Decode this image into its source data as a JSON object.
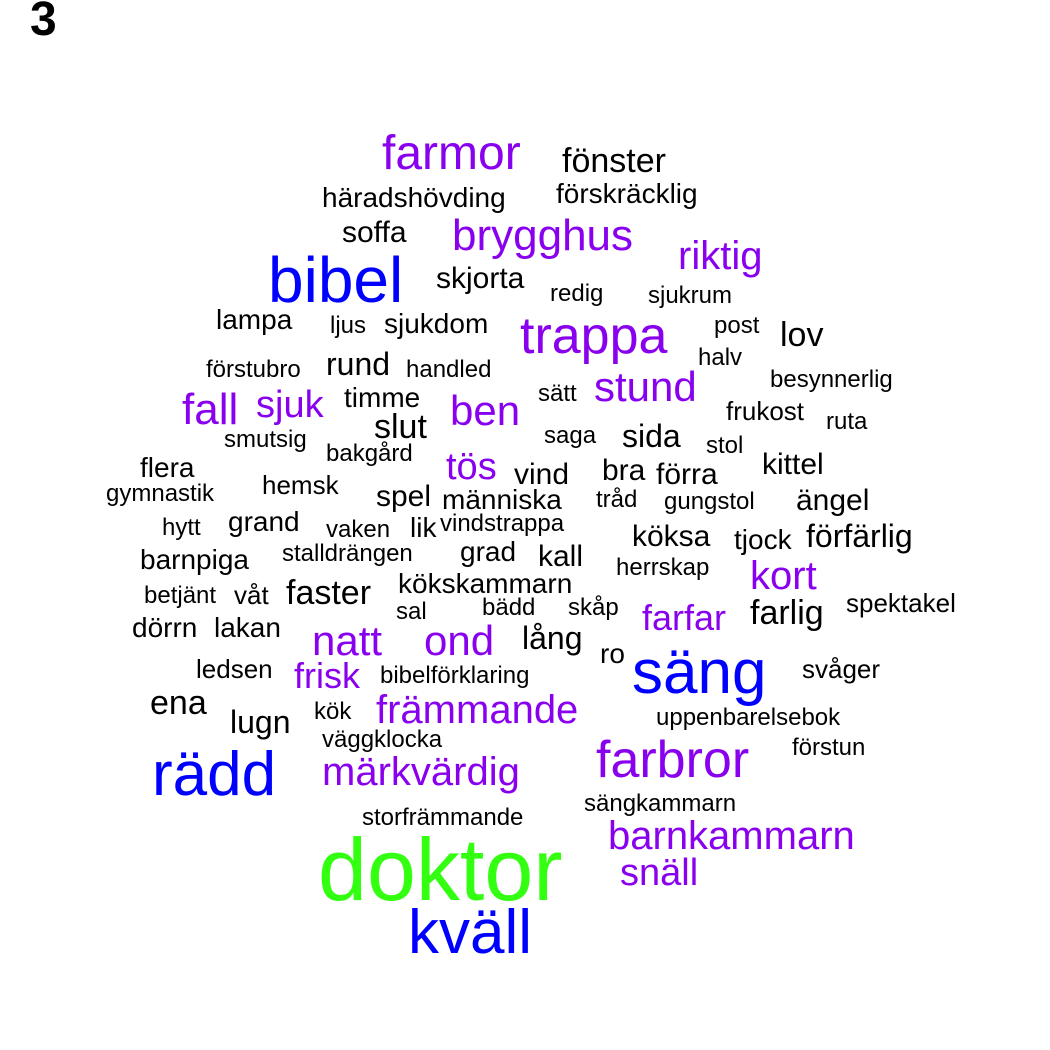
{
  "panel_label": "3",
  "colors": {
    "top": "#33ff11",
    "high": "#0000ff",
    "mid": "#8800ee",
    "low": "#000000"
  },
  "words": [
    {
      "text": "doktor",
      "tier": "top"
    },
    {
      "text": "kväll",
      "tier": "high"
    },
    {
      "text": "rädd",
      "tier": "high"
    },
    {
      "text": "säng",
      "tier": "high"
    },
    {
      "text": "bibel",
      "tier": "high"
    },
    {
      "text": "farbror",
      "tier": "mid"
    },
    {
      "text": "trappa",
      "tier": "mid"
    },
    {
      "text": "farmor",
      "tier": "mid"
    },
    {
      "text": "brygghus",
      "tier": "mid"
    },
    {
      "text": "barnkammarn",
      "tier": "mid"
    },
    {
      "text": "märkvärdig",
      "tier": "mid"
    },
    {
      "text": "främmande",
      "tier": "mid"
    },
    {
      "text": "natt",
      "tier": "mid"
    },
    {
      "text": "ond",
      "tier": "mid"
    },
    {
      "text": "stund",
      "tier": "mid"
    },
    {
      "text": "ben",
      "tier": "mid"
    },
    {
      "text": "fall",
      "tier": "mid"
    },
    {
      "text": "sjuk",
      "tier": "mid"
    },
    {
      "text": "tös",
      "tier": "mid"
    },
    {
      "text": "riktig",
      "tier": "mid"
    },
    {
      "text": "kort",
      "tier": "mid"
    },
    {
      "text": "snäll",
      "tier": "mid"
    },
    {
      "text": "frisk",
      "tier": "mid"
    },
    {
      "text": "farfar",
      "tier": "mid"
    },
    {
      "text": "fönster",
      "tier": "low"
    },
    {
      "text": "förskräcklig",
      "tier": "low"
    },
    {
      "text": "häradshövding",
      "tier": "low"
    },
    {
      "text": "soffa",
      "tier": "low"
    },
    {
      "text": "skjorta",
      "tier": "low"
    },
    {
      "text": "redig",
      "tier": "low"
    },
    {
      "text": "sjukrum",
      "tier": "low"
    },
    {
      "text": "lampa",
      "tier": "low"
    },
    {
      "text": "ljus",
      "tier": "low"
    },
    {
      "text": "sjukdom",
      "tier": "low"
    },
    {
      "text": "post",
      "tier": "low"
    },
    {
      "text": "lov",
      "tier": "low"
    },
    {
      "text": "halv",
      "tier": "low"
    },
    {
      "text": "förstubro",
      "tier": "low"
    },
    {
      "text": "rund",
      "tier": "low"
    },
    {
      "text": "handled",
      "tier": "low"
    },
    {
      "text": "besynnerlig",
      "tier": "low"
    },
    {
      "text": "timme",
      "tier": "low"
    },
    {
      "text": "sätt",
      "tier": "low"
    },
    {
      "text": "frukost",
      "tier": "low"
    },
    {
      "text": "ruta",
      "tier": "low"
    },
    {
      "text": "slut",
      "tier": "low"
    },
    {
      "text": "smutsig",
      "tier": "low"
    },
    {
      "text": "saga",
      "tier": "low"
    },
    {
      "text": "sida",
      "tier": "low"
    },
    {
      "text": "stol",
      "tier": "low"
    },
    {
      "text": "bakgård",
      "tier": "low"
    },
    {
      "text": "flera",
      "tier": "low"
    },
    {
      "text": "vind",
      "tier": "low"
    },
    {
      "text": "bra",
      "tier": "low"
    },
    {
      "text": "förra",
      "tier": "low"
    },
    {
      "text": "kittel",
      "tier": "low"
    },
    {
      "text": "gymnastik",
      "tier": "low"
    },
    {
      "text": "hemsk",
      "tier": "low"
    },
    {
      "text": "spel",
      "tier": "low"
    },
    {
      "text": "människa",
      "tier": "low"
    },
    {
      "text": "tråd",
      "tier": "low"
    },
    {
      "text": "gungstol",
      "tier": "low"
    },
    {
      "text": "ängel",
      "tier": "low"
    },
    {
      "text": "hytt",
      "tier": "low"
    },
    {
      "text": "grand",
      "tier": "low"
    },
    {
      "text": "vaken",
      "tier": "low"
    },
    {
      "text": "lik",
      "tier": "low"
    },
    {
      "text": "vindstrappa",
      "tier": "low"
    },
    {
      "text": "köksa",
      "tier": "low"
    },
    {
      "text": "tjock",
      "tier": "low"
    },
    {
      "text": "förfärlig",
      "tier": "low"
    },
    {
      "text": "barnpiga",
      "tier": "low"
    },
    {
      "text": "stalldrängen",
      "tier": "low"
    },
    {
      "text": "grad",
      "tier": "low"
    },
    {
      "text": "kall",
      "tier": "low"
    },
    {
      "text": "herrskap",
      "tier": "low"
    },
    {
      "text": "betjänt",
      "tier": "low"
    },
    {
      "text": "våt",
      "tier": "low"
    },
    {
      "text": "faster",
      "tier": "low"
    },
    {
      "text": "kökskammarn",
      "tier": "low"
    },
    {
      "text": "bädd",
      "tier": "low"
    },
    {
      "text": "skåp",
      "tier": "low"
    },
    {
      "text": "sal",
      "tier": "low"
    },
    {
      "text": "farlig",
      "tier": "low"
    },
    {
      "text": "spektakel",
      "tier": "low"
    },
    {
      "text": "dörrn",
      "tier": "low"
    },
    {
      "text": "lakan",
      "tier": "low"
    },
    {
      "text": "lång",
      "tier": "low"
    },
    {
      "text": "ro",
      "tier": "low"
    },
    {
      "text": "ledsen",
      "tier": "low"
    },
    {
      "text": "bibelförklaring",
      "tier": "low"
    },
    {
      "text": "svåger",
      "tier": "low"
    },
    {
      "text": "ena",
      "tier": "low"
    },
    {
      "text": "kök",
      "tier": "low"
    },
    {
      "text": "uppenbarelsebok",
      "tier": "low"
    },
    {
      "text": "lugn",
      "tier": "low"
    },
    {
      "text": "väggklocka",
      "tier": "low"
    },
    {
      "text": "förstun",
      "tier": "low"
    },
    {
      "text": "sängkammarn",
      "tier": "low"
    },
    {
      "text": "storfrämmande",
      "tier": "low"
    }
  ]
}
